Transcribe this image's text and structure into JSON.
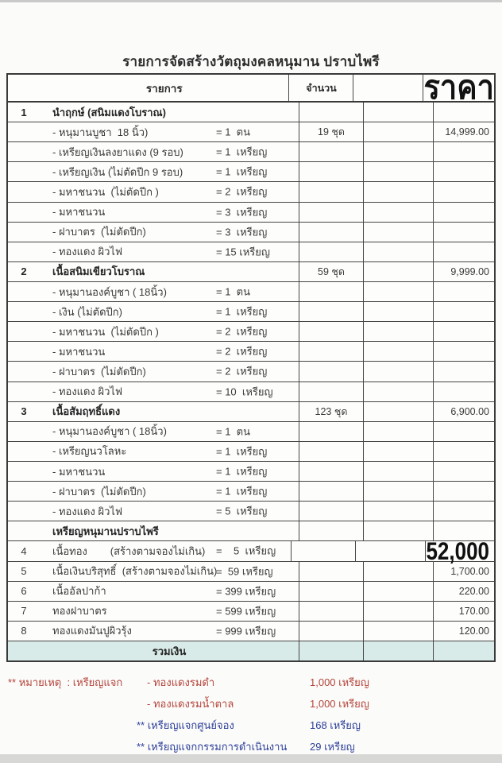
{
  "title": "รายการจัดสร้างวัตถุมงคลหนุมาน ปราบไพรี",
  "table": {
    "header": {
      "item": "รายการ",
      "quantity": "จำนวน",
      "price": "ราคา"
    },
    "rows": [
      {
        "no": "1",
        "name": "นำฤกษ์ (สนิมแดงโบราณ)",
        "amount": "",
        "qty": "",
        "price": "",
        "style": "section"
      },
      {
        "no": "",
        "name": "- หนุมานบูชา  18 นิ้ว)",
        "amount": "= 1  ตน",
        "qty": "19 ชุด",
        "price": "14,999.00",
        "style": "sub"
      },
      {
        "no": "",
        "name": "- เหรียญเงินลงยาแดง (9 รอบ)",
        "amount": "= 1  เหรียญ",
        "qty": "",
        "price": "",
        "style": "sub"
      },
      {
        "no": "",
        "name": "- เหรียญเงิน (ไม่ตัดปีก 9 รอบ)",
        "amount": "= 1  เหรียญ",
        "qty": "",
        "price": "",
        "style": "sub"
      },
      {
        "no": "",
        "name": "- มหาชนวน  (ไม่ตัดปีก )",
        "amount": "= 2  เหรียญ",
        "qty": "",
        "price": "",
        "style": "sub"
      },
      {
        "no": "",
        "name": "- มหาชนวน",
        "amount": "= 3  เหรียญ",
        "qty": "",
        "price": "",
        "style": "sub"
      },
      {
        "no": "",
        "name": "- ฝาบาตร  (ไม่ตัดปีก)",
        "amount": "= 3  เหรียญ",
        "qty": "",
        "price": "",
        "style": "sub"
      },
      {
        "no": "",
        "name": "- ทองแดง ผิวไฟ",
        "amount": "= 15 เหรียญ",
        "qty": "",
        "price": "",
        "style": "sub"
      },
      {
        "no": "2",
        "name": "เนื้อสนิมเขียวโบราณ",
        "amount": "",
        "qty": "59 ชุด",
        "price": "9,999.00",
        "style": "section"
      },
      {
        "no": "",
        "name": "- หนุมานองค์บูชา ( 18นิ้ว)",
        "amount": "= 1  ตน",
        "qty": "",
        "price": "",
        "style": "sub"
      },
      {
        "no": "",
        "name": "- เงิน (ไม่ตัดปีก)",
        "amount": "= 1  เหรียญ",
        "qty": "",
        "price": "",
        "style": "sub"
      },
      {
        "no": "",
        "name": "- มหาชนวน  (ไม่ตัดปีก )",
        "amount": "= 2  เหรียญ",
        "qty": "",
        "price": "",
        "style": "sub"
      },
      {
        "no": "",
        "name": "- มหาชนวน",
        "amount": "= 2  เหรียญ",
        "qty": "",
        "price": "",
        "style": "sub"
      },
      {
        "no": "",
        "name": "- ฝาบาตร  (ไม่ตัดปีก)",
        "amount": "= 2  เหรียญ",
        "qty": "",
        "price": "",
        "style": "sub"
      },
      {
        "no": "",
        "name": "- ทองแดง ผิวไฟ",
        "amount": "= 10  เหรียญ",
        "qty": "",
        "price": "",
        "style": "sub"
      },
      {
        "no": "3",
        "name": "เนื้อสัมฤทธิ์แดง",
        "amount": "",
        "qty": "123 ชุด",
        "price": "6,900.00",
        "style": "section"
      },
      {
        "no": "",
        "name": "- หนุมานองค์บูชา ( 18นิ้ว)",
        "amount": "= 1  ตน",
        "qty": "",
        "price": "",
        "style": "sub"
      },
      {
        "no": "",
        "name": "- เหรียญนวโลหะ",
        "amount": "= 1  เหรียญ",
        "qty": "",
        "price": "",
        "style": "sub"
      },
      {
        "no": "",
        "name": "- มหาชนวน",
        "amount": "= 1  เหรียญ",
        "qty": "",
        "price": "",
        "style": "sub"
      },
      {
        "no": "",
        "name": "- ฝาบาตร  (ไม่ตัดปีก)",
        "amount": "= 1  เหรียญ",
        "qty": "",
        "price": "",
        "style": "sub"
      },
      {
        "no": "",
        "name": "- ทองแดง ผิวไฟ",
        "amount": "= 5  เหรียญ",
        "qty": "",
        "price": "",
        "style": "sub"
      },
      {
        "no": "",
        "name": "เหรียญหนุมานปราบไพรี",
        "amount": "",
        "qty": "",
        "price": "",
        "style": "section"
      },
      {
        "no": "4",
        "name": "เนื้อทอง        (สร้างตามจองไม่เกิน)",
        "amount": "=    5  เหรียญ",
        "qty": "",
        "price": "52,000",
        "style": "item",
        "price_style": "handwritten"
      },
      {
        "no": "5",
        "name": "เนื้อเงินบริสุทธิ์  (สร้างตามจองไม่เกิน)",
        "amount": "=  59 เหรียญ",
        "qty": "",
        "price": "1,700.00",
        "style": "item"
      },
      {
        "no": "6",
        "name": "เนื้ออัลปาก้า",
        "amount": "= 399 เหรียญ",
        "qty": "",
        "price": "220.00",
        "style": "item"
      },
      {
        "no": "7",
        "name": "ทองฝาบาตร",
        "amount": "= 599 เหรียญ",
        "qty": "",
        "price": "170.00",
        "style": "item"
      },
      {
        "no": "8",
        "name": "ทองแดงมันปูผิวรุ้ง",
        "amount": "= 999 เหรียญ",
        "qty": "",
        "price": "120.00",
        "style": "item"
      },
      {
        "no": "",
        "name": "รวมเงิน",
        "amount": "",
        "qty": "",
        "price": "",
        "style": "total"
      }
    ]
  },
  "notes": {
    "lines": [
      {
        "label": "** หมายเหตุ  : เหรียญแจก",
        "item": "- ทองแดงรมดำ",
        "qty": "1,000 เหรียญ",
        "color": "red"
      },
      {
        "label": "",
        "item": "- ทองแดงรมน้ำตาล",
        "qty": "1,000 เหรียญ",
        "color": "red"
      },
      {
        "label": "",
        "item": "** เหรียญแจกศูนย์จอง",
        "qty": "168 เหรียญ",
        "color": "blue"
      },
      {
        "label": "",
        "item": "** เหรียญแจกกรรมการดำเนินงาน",
        "qty": "29 เหรียญ",
        "color": "blue"
      }
    ]
  },
  "colors": {
    "note_red": "#b5443a",
    "note_blue": "#2e4099",
    "total_row_bg": "#d9ebe8",
    "table_border": "#3a3a3a"
  }
}
